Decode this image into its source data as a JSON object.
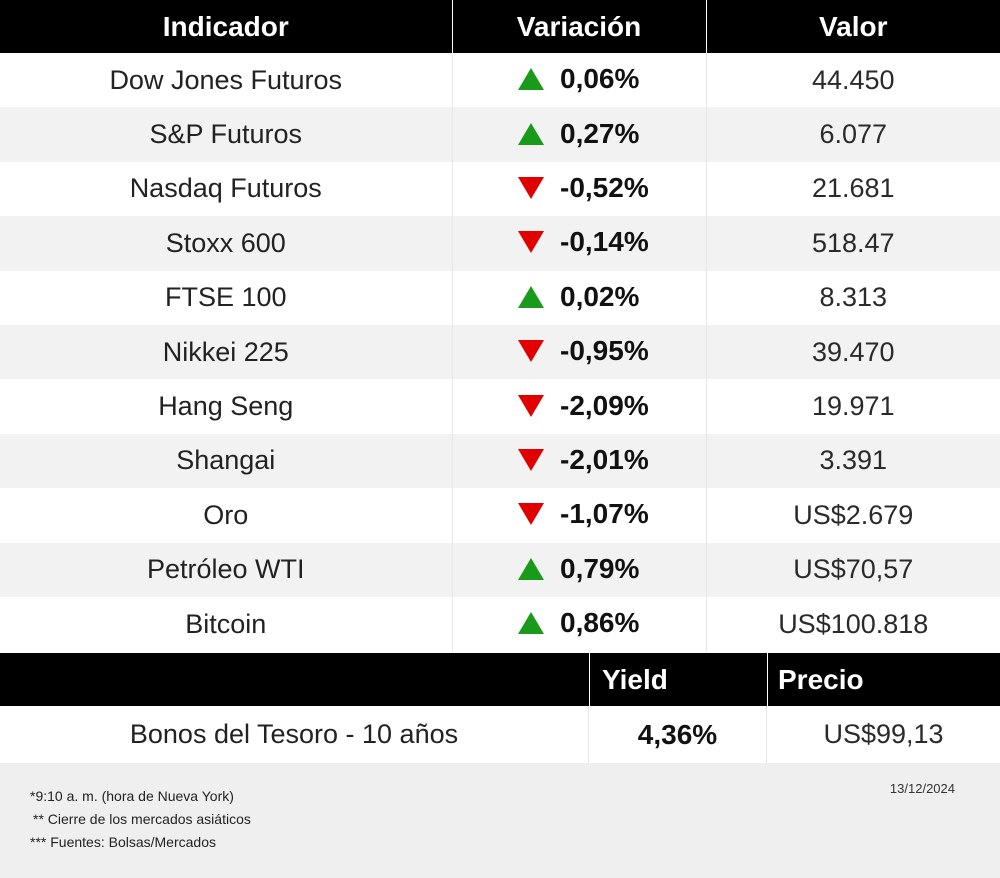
{
  "table": {
    "headers": {
      "indicator": "Indicador",
      "variation": "Variación",
      "value": "Valor"
    },
    "colors": {
      "up": "#1a9a1a",
      "down": "#e00000",
      "header_bg": "#000000",
      "stripe": "#f2f2f2"
    },
    "rows": [
      {
        "name": "Dow Jones Futuros",
        "direction": "up",
        "variation": "0,06%",
        "value": "44.450"
      },
      {
        "name": "S&P Futuros",
        "direction": "up",
        "variation": "0,27%",
        "value": "6.077"
      },
      {
        "name": "Nasdaq Futuros",
        "direction": "down",
        "variation": "-0,52%",
        "value": "21.681"
      },
      {
        "name": "Stoxx 600",
        "direction": "down",
        "variation": "-0,14%",
        "value": "518.47"
      },
      {
        "name": "FTSE 100",
        "direction": "up",
        "variation": "0,02%",
        "value": "8.313"
      },
      {
        "name": "Nikkei 225",
        "direction": "down",
        "variation": "-0,95%",
        "value": "39.470"
      },
      {
        "name": "Hang Seng",
        "direction": "down",
        "variation": "-2,09%",
        "value": "19.971"
      },
      {
        "name": "Shangai",
        "direction": "down",
        "variation": "-2,01%",
        "value": "3.391"
      },
      {
        "name": "Oro",
        "direction": "down",
        "variation": "-1,07%",
        "value": "US$2.679"
      },
      {
        "name": "Petróleo WTI",
        "direction": "up",
        "variation": "0,79%",
        "value": "US$70,57"
      },
      {
        "name": "Bitcoin",
        "direction": "up",
        "variation": "0,86%",
        "value": "US$100.818"
      }
    ]
  },
  "bonds": {
    "headers": {
      "yield": "Yield",
      "price": "Precio"
    },
    "row": {
      "name": "Bonos del Tesoro - 10 años",
      "yield": "4,36%",
      "price": "US$99,13"
    }
  },
  "footer": {
    "date": "13/12/2024",
    "notes": [
      "*9:10 a. m. (hora de Nueva York)",
      "** Cierre de los mercados asiáticos",
      "*** Fuentes: Bolsas/Mercados"
    ]
  }
}
